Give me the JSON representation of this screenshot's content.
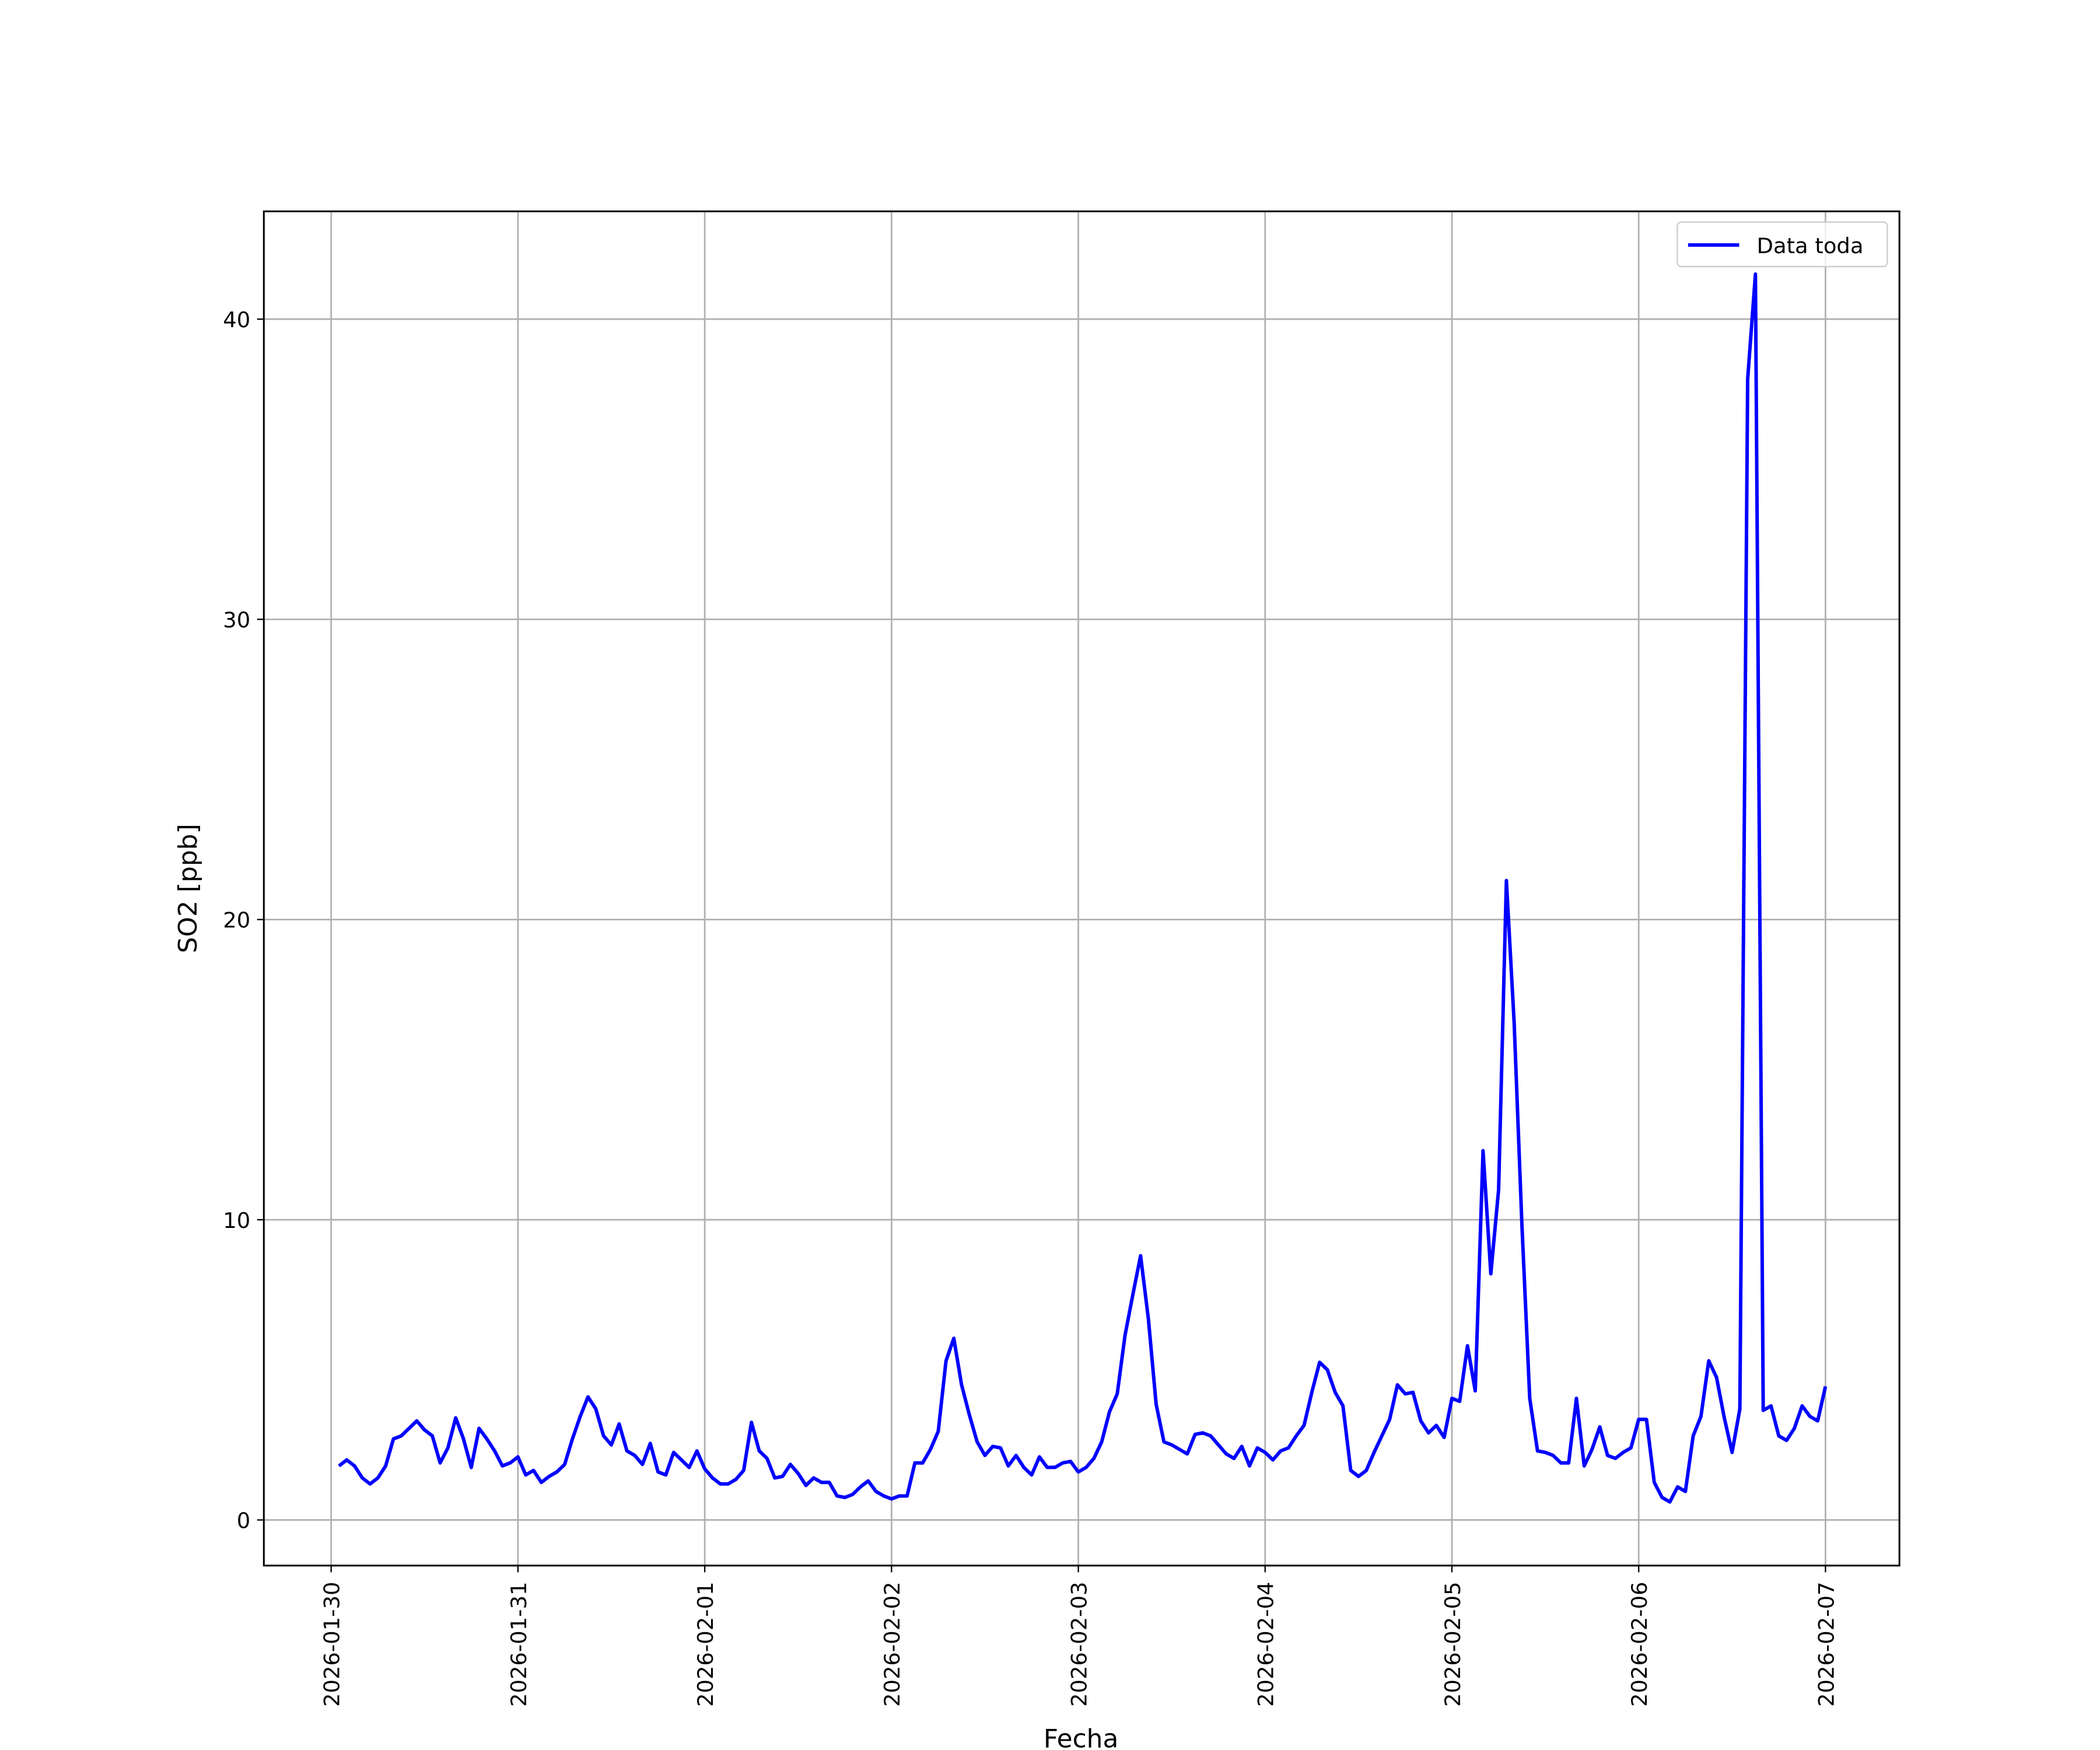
{
  "chart_data": {
    "type": "line",
    "xlabel": "Fecha",
    "ylabel": "SO2 [ppb]",
    "x": [
      1,
      2,
      3,
      4,
      5,
      6,
      7,
      8,
      9,
      10,
      11,
      12,
      13,
      14,
      15,
      16,
      17,
      18,
      19,
      20,
      21,
      22,
      23,
      24,
      25,
      26,
      27,
      28,
      29,
      30,
      31,
      32,
      33,
      34,
      35,
      36,
      37,
      38,
      39,
      40,
      41,
      42,
      43,
      44,
      45,
      46,
      47,
      48,
      49,
      50,
      51,
      52,
      53,
      54,
      55,
      56,
      57,
      58,
      59,
      60,
      61,
      62,
      63,
      64,
      65,
      66,
      67,
      68,
      69,
      70,
      71,
      72,
      73,
      74,
      75,
      76,
      77,
      78,
      79,
      80,
      81,
      82,
      83,
      84,
      85,
      86,
      87,
      88,
      89,
      90,
      91,
      92,
      93,
      94,
      95,
      96,
      97,
      98,
      99,
      100,
      101,
      102,
      103,
      104,
      105,
      106,
      107,
      108,
      109,
      110,
      111,
      112,
      113,
      114,
      115,
      116,
      117,
      118,
      119,
      120,
      121,
      122,
      123,
      124,
      125,
      126,
      127,
      128,
      129,
      130,
      131,
      132,
      133,
      134,
      135,
      136,
      137,
      138,
      139,
      140,
      141,
      142,
      143,
      144,
      145,
      146,
      147,
      148,
      149,
      150,
      151,
      152,
      153,
      154,
      155,
      156,
      157,
      158,
      159,
      160,
      161,
      162,
      163,
      164,
      165,
      166,
      167,
      168,
      169,
      170,
      171,
      172,
      173,
      174,
      175,
      176,
      177,
      178,
      179,
      180,
      181,
      182,
      183,
      184,
      185,
      186,
      187,
      188,
      189,
      190,
      191,
      192
    ],
    "series": [
      {
        "name": "Data toda",
        "color": "#0000ff",
        "values": [
          1.8,
          2.0,
          1.8,
          1.4,
          1.2,
          1.4,
          1.8,
          2.7,
          2.8,
          3.05,
          3.3,
          3.0,
          2.8,
          1.9,
          2.4,
          3.4,
          2.7,
          1.75,
          3.05,
          2.7,
          2.3,
          1.8,
          1.9,
          2.1,
          1.5,
          1.65,
          1.25,
          1.45,
          1.6,
          1.85,
          2.7,
          3.45,
          4.1,
          3.7,
          2.8,
          2.5,
          3.2,
          2.3,
          2.15,
          1.85,
          2.55,
          1.6,
          1.5,
          2.25,
          2.0,
          1.75,
          2.3,
          1.7,
          1.4,
          1.2,
          1.2,
          1.35,
          1.65,
          3.25,
          2.3,
          2.05,
          1.4,
          1.45,
          1.85,
          1.55,
          1.15,
          1.4,
          1.25,
          1.25,
          0.8,
          0.75,
          0.85,
          1.1,
          1.3,
          0.95,
          0.8,
          0.7,
          0.8,
          0.8,
          1.9,
          1.9,
          2.35,
          2.95,
          5.3,
          6.05,
          4.5,
          3.5,
          2.6,
          2.15,
          2.45,
          2.4,
          1.8,
          2.15,
          1.75,
          1.5,
          2.1,
          1.75,
          1.75,
          1.9,
          1.95,
          1.6,
          1.75,
          2.05,
          2.6,
          3.6,
          4.2,
          6.15,
          7.5,
          8.8,
          6.7,
          3.85,
          2.6,
          2.5,
          2.35,
          2.2,
          2.85,
          2.9,
          2.8,
          2.5,
          2.2,
          2.05,
          2.45,
          1.8,
          2.4,
          2.25,
          2.0,
          2.3,
          2.4,
          2.8,
          3.15,
          4.25,
          5.25,
          5.0,
          4.25,
          3.8,
          1.65,
          1.45,
          1.65,
          2.25,
          2.8,
          3.35,
          4.5,
          4.2,
          4.25,
          3.3,
          2.9,
          3.15,
          2.75,
          4.05,
          3.95,
          5.8,
          4.3,
          12.3,
          8.2,
          11.0,
          21.3,
          16.55,
          9.8,
          4.05,
          2.3,
          2.25,
          2.15,
          1.9,
          1.9,
          4.05,
          1.8,
          2.35,
          3.1,
          2.15,
          2.05,
          2.25,
          2.4,
          3.35,
          3.35,
          1.25,
          0.75,
          0.6,
          1.1,
          0.95,
          2.8,
          3.45,
          5.3,
          4.75,
          3.4,
          2.25,
          3.7,
          38.0,
          41.5,
          3.65,
          3.8,
          2.8,
          2.65,
          3.05,
          3.8,
          3.45,
          3.3,
          4.45
        ]
      }
    ],
    "xlim": [
      -8.65,
      201.5
    ],
    "xticks": [
      {
        "value": 0,
        "label": "2026-01-30"
      },
      {
        "value": 24,
        "label": "2026-01-31"
      },
      {
        "value": 48,
        "label": "2026-02-01"
      },
      {
        "value": 72,
        "label": "2026-02-02"
      },
      {
        "value": 96,
        "label": "2026-02-03"
      },
      {
        "value": 120,
        "label": "2026-02-04"
      },
      {
        "value": 144,
        "label": "2026-02-05"
      },
      {
        "value": 168,
        "label": "2026-02-06"
      },
      {
        "value": 192,
        "label": "2026-02-07"
      }
    ],
    "ylim": [
      -1.52,
      43.59
    ],
    "yticks": [
      0,
      10,
      20,
      30,
      40
    ],
    "grid": true,
    "legend": "upper right"
  }
}
